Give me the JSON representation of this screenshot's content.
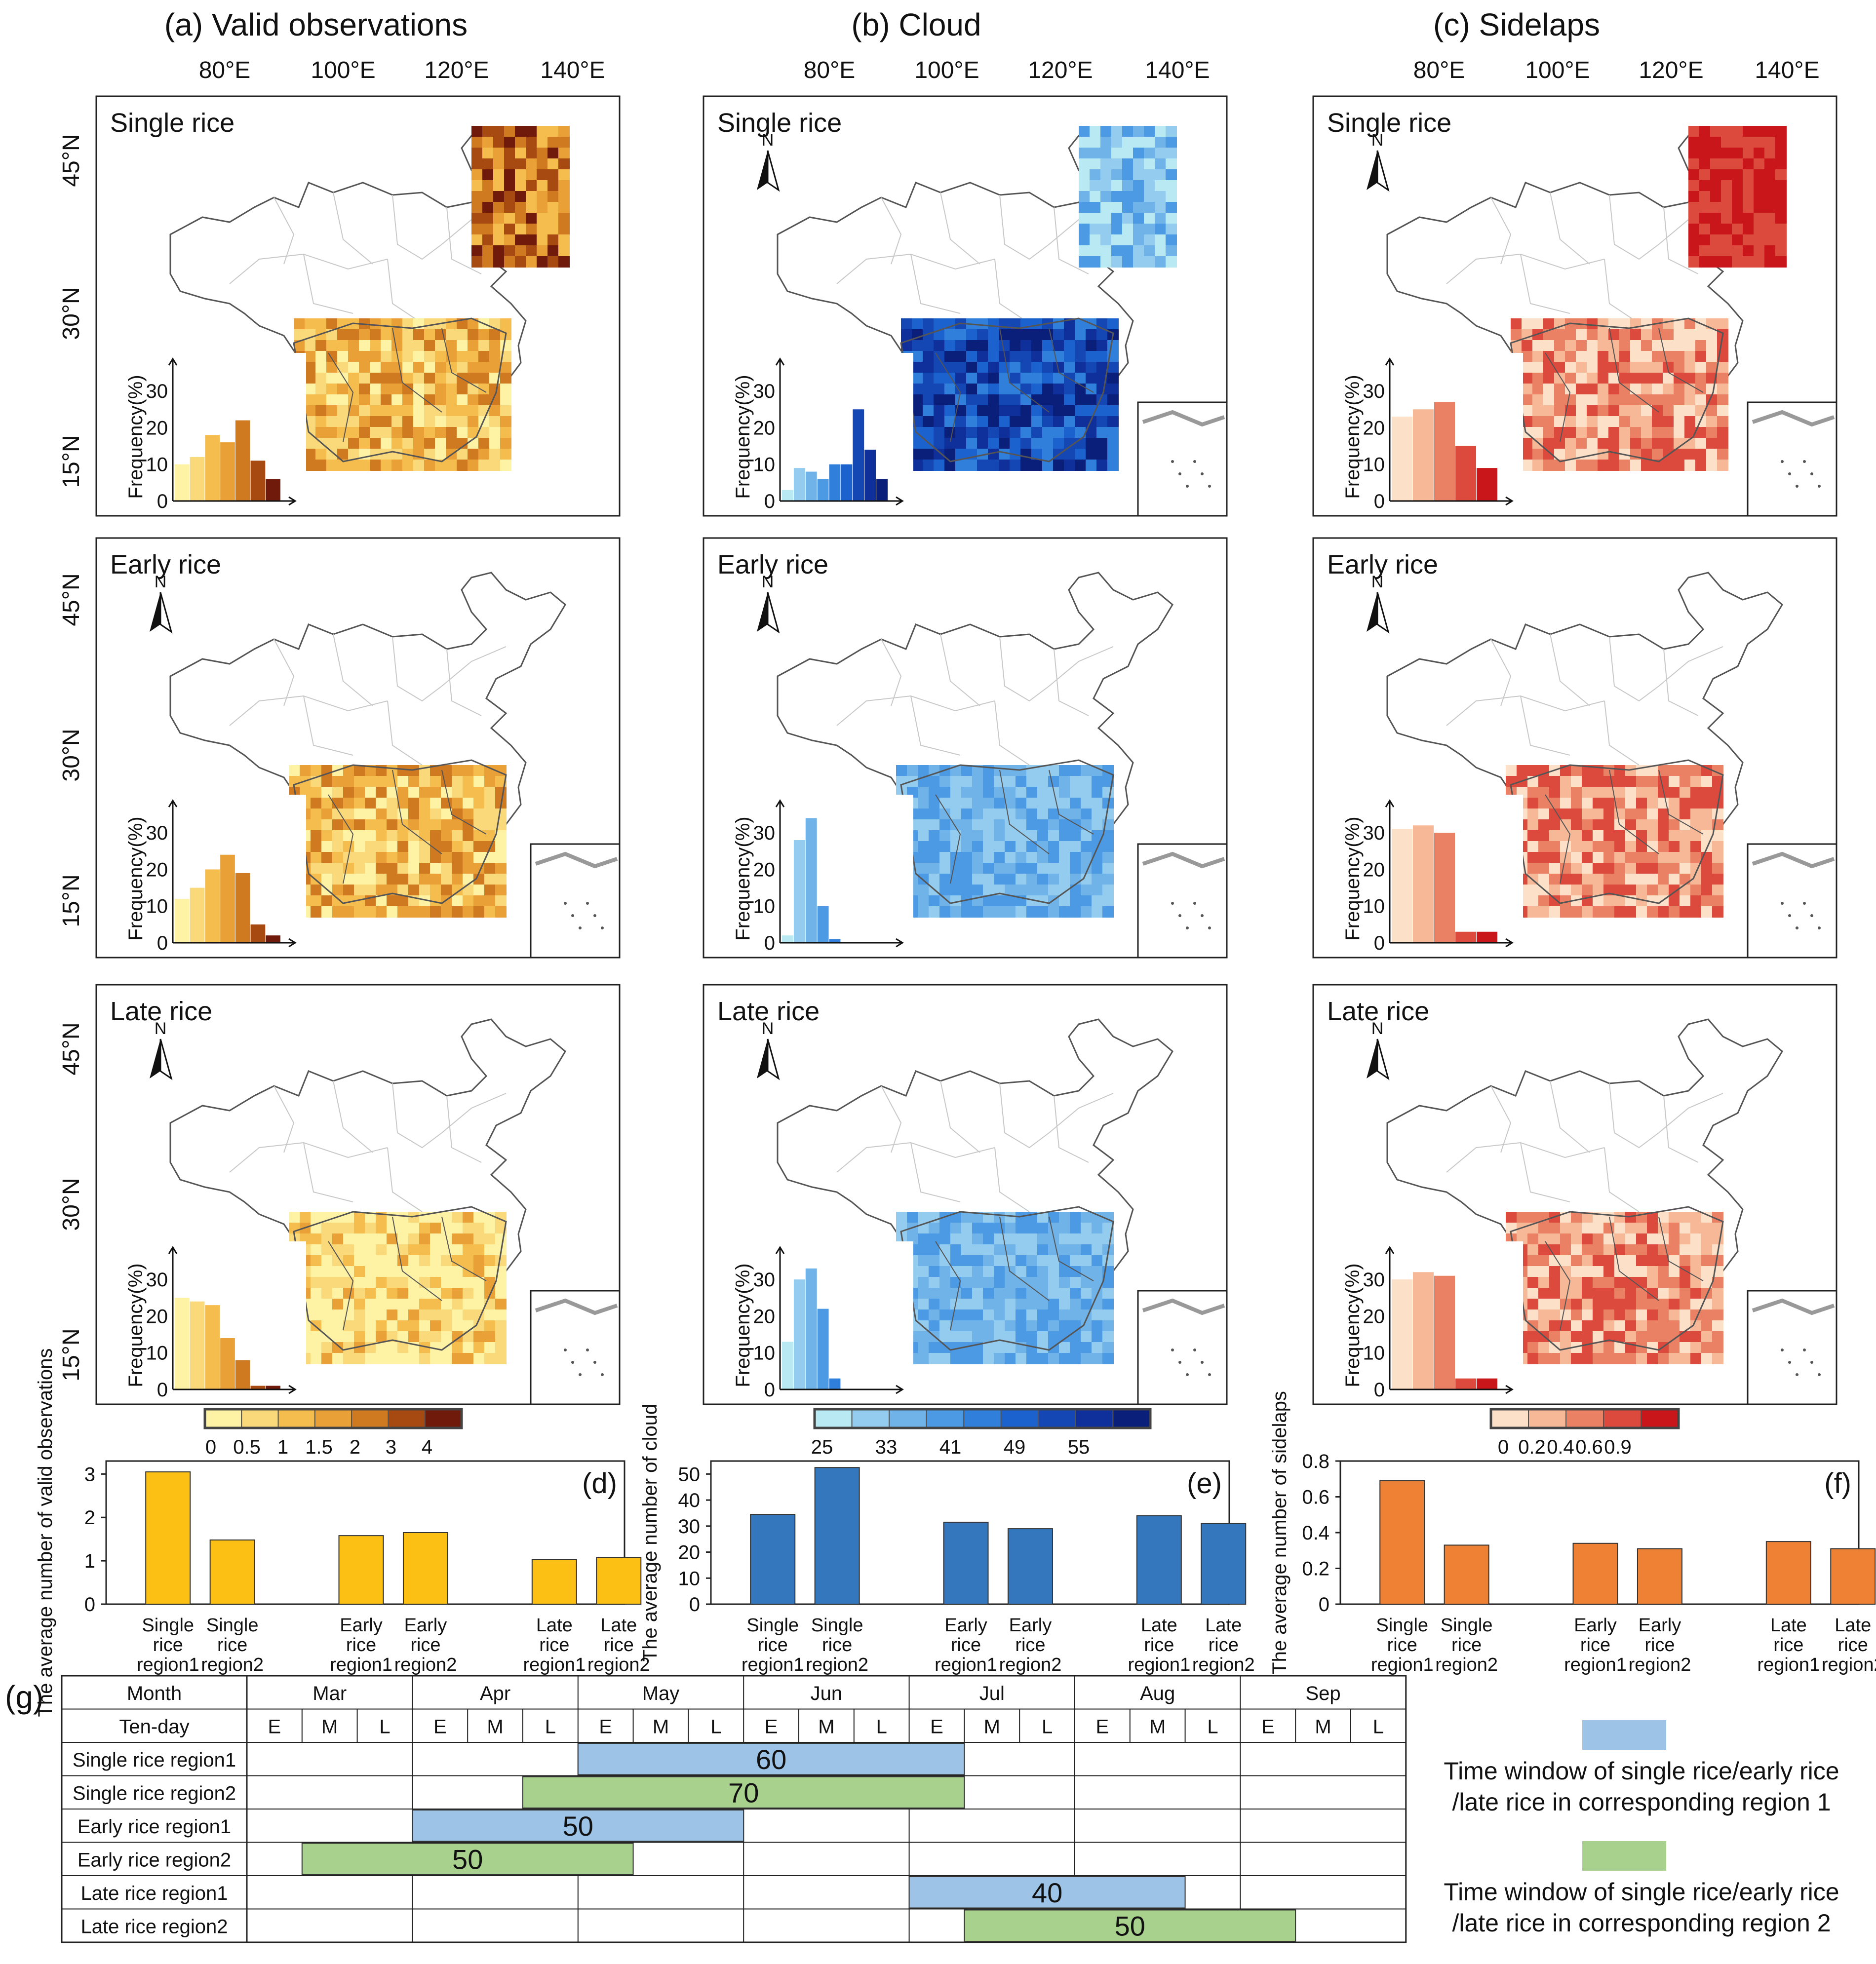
{
  "panel_titles": [
    "(a) Valid observations",
    "(b) Cloud",
    "(c) Sidelaps"
  ],
  "lon_ticks": [
    "80°E",
    "100°E",
    "120°E",
    "140°E"
  ],
  "lat_ticks": [
    "45°N",
    "30°N",
    "15°N"
  ],
  "row_titles": [
    "Single rice",
    "Early rice",
    "Late rice"
  ],
  "north_label": "N",
  "freq_axis_label": "Frequency(%)",
  "freq_ticks": [
    "0",
    "10",
    "20",
    "30"
  ],
  "colors": {
    "valid": [
      "#fef3a4",
      "#fad97b",
      "#f4bd4e",
      "#e9a037",
      "#cf7a20",
      "#a64a12",
      "#6f1a0a"
    ],
    "cloud": [
      "#b9eaf3",
      "#93ccee",
      "#6fb3e8",
      "#4c9ae3",
      "#2f7fdb",
      "#1c62cf",
      "#1446b4",
      "#0f2f9a",
      "#0a1f7a"
    ],
    "sidelap": [
      "#fde0c8",
      "#f6b897",
      "#ea8064",
      "#dc4a3e",
      "#c8161a"
    ],
    "bar_d": "#fcbf14",
    "bar_e": "#3477bc",
    "bar_f": "#ee8133",
    "window_region1": "#9dc3e6",
    "window_region2": "#a9d18e"
  },
  "colorbars": {
    "valid": [
      "0",
      "0.5",
      "1",
      "1.5",
      "2",
      "3",
      "4"
    ],
    "cloud": [
      "25",
      "33",
      "41",
      "49",
      "55"
    ],
    "sidelap": [
      "0",
      "0.2",
      "0.4",
      "0.6",
      "0.9"
    ]
  },
  "chart_data": [
    {
      "id": "hist_a1",
      "type": "bar",
      "panel": "(a) Single rice",
      "series_colors": "valid",
      "ylim": [
        0,
        35
      ],
      "values": [
        10,
        12,
        18,
        16,
        22,
        11,
        6
      ]
    },
    {
      "id": "hist_a2",
      "type": "bar",
      "panel": "(a) Early rice",
      "series_colors": "valid",
      "ylim": [
        0,
        35
      ],
      "values": [
        12,
        15,
        20,
        24,
        19,
        5,
        2
      ]
    },
    {
      "id": "hist_a3",
      "type": "bar",
      "panel": "(a) Late rice",
      "series_colors": "valid",
      "ylim": [
        0,
        35
      ],
      "values": [
        25,
        24,
        23,
        14,
        8,
        1,
        1
      ]
    },
    {
      "id": "hist_b1",
      "type": "bar",
      "panel": "(b) Single rice",
      "series_colors": "cloud",
      "ylim": [
        0,
        35
      ],
      "values": [
        3,
        9,
        8,
        6,
        10,
        10,
        25,
        14,
        6
      ]
    },
    {
      "id": "hist_b2",
      "type": "bar",
      "panel": "(b) Early rice",
      "series_colors": "cloud",
      "ylim": [
        0,
        35
      ],
      "values": [
        2,
        28,
        34,
        10,
        1,
        0,
        0,
        0,
        0
      ]
    },
    {
      "id": "hist_b3",
      "type": "bar",
      "panel": "(b) Late rice",
      "series_colors": "cloud",
      "ylim": [
        0,
        35
      ],
      "values": [
        13,
        30,
        33,
        22,
        3,
        0,
        0,
        0,
        0
      ]
    },
    {
      "id": "hist_c1",
      "type": "bar",
      "panel": "(c) Single rice",
      "series_colors": "sidelap",
      "ylim": [
        0,
        35
      ],
      "values": [
        23,
        25,
        27,
        15,
        9
      ]
    },
    {
      "id": "hist_c2",
      "type": "bar",
      "panel": "(c) Early rice",
      "series_colors": "sidelap",
      "ylim": [
        0,
        35
      ],
      "values": [
        31,
        32,
        30,
        3,
        3
      ]
    },
    {
      "id": "hist_c3",
      "type": "bar",
      "panel": "(c) Late rice",
      "series_colors": "sidelap",
      "ylim": [
        0,
        35
      ],
      "values": [
        30,
        32,
        31,
        3,
        3
      ]
    },
    {
      "id": "bar_d",
      "type": "bar",
      "label": "(d)",
      "ylabel": "The average number of valid observations",
      "categories": [
        "Single rice region1",
        "Single rice region2",
        "Early rice region1",
        "Early rice region2",
        "Late rice region1",
        "Late rice region2"
      ],
      "values": [
        3.05,
        1.48,
        1.58,
        1.65,
        1.03,
        1.08
      ],
      "yticks": [
        "0",
        "1",
        "2",
        "3"
      ],
      "ylim": [
        0,
        3.3
      ]
    },
    {
      "id": "bar_e",
      "type": "bar",
      "label": "(e)",
      "ylabel": "The average number of cloud",
      "categories": [
        "Single rice region1",
        "Single rice region2",
        "Early rice region1",
        "Early rice region2",
        "Late rice region1",
        "Late rice region2"
      ],
      "values": [
        34.5,
        52.5,
        31.5,
        29,
        34,
        31
      ],
      "yticks": [
        "0",
        "10",
        "20",
        "30",
        "40",
        "50"
      ],
      "ylim": [
        0,
        55
      ]
    },
    {
      "id": "bar_f",
      "type": "bar",
      "label": "(f)",
      "ylabel": "The average number of sidelaps",
      "categories": [
        "Single rice region1",
        "Single rice region2",
        "Early rice region1",
        "Early rice region2",
        "Late rice region1",
        "Late rice region2"
      ],
      "values": [
        0.69,
        0.33,
        0.34,
        0.31,
        0.35,
        0.31
      ],
      "yticks": [
        "0",
        "0.2",
        "0.4",
        "0.6",
        "0.8"
      ],
      "ylim": [
        0,
        0.8
      ]
    },
    {
      "id": "timeline_g",
      "type": "table",
      "label": "(g)",
      "header_month": "Month",
      "header_tenday": "Ten-day",
      "months": [
        "Mar",
        "Apr",
        "May",
        "Jun",
        "Jul",
        "Aug",
        "Sep"
      ],
      "dekads": [
        "E",
        "M",
        "L"
      ],
      "rows": [
        {
          "name": "Single rice region1",
          "start_dekad": 7,
          "end_dekad": 13,
          "value": "60",
          "color": "window_region1"
        },
        {
          "name": "Single rice region2",
          "start_dekad": 6,
          "end_dekad": 13,
          "value": "70",
          "color": "window_region2"
        },
        {
          "name": "Early rice region1",
          "start_dekad": 4,
          "end_dekad": 9,
          "value": "50",
          "color": "window_region1"
        },
        {
          "name": "Early rice region2",
          "start_dekad": 2,
          "end_dekad": 7,
          "value": "50",
          "color": "window_region2"
        },
        {
          "name": "Late rice region1",
          "start_dekad": 13,
          "end_dekad": 17,
          "value": "40",
          "color": "window_region1"
        },
        {
          "name": "Late rice region2",
          "start_dekad": 14,
          "end_dekad": 19,
          "value": "50",
          "color": "window_region2"
        }
      ]
    }
  ],
  "legend": {
    "region1": "Time window of single rice/early rice /late rice in corresponding region 1",
    "region2": "Time window of single rice/early rice /late rice in corresponding region 2",
    "region1_line1": "Time window of single rice/early rice",
    "region1_line2": "/late rice in corresponding region 1",
    "region2_line1": "Time window of single rice/early rice",
    "region2_line2": "/late rice in corresponding region 2"
  }
}
